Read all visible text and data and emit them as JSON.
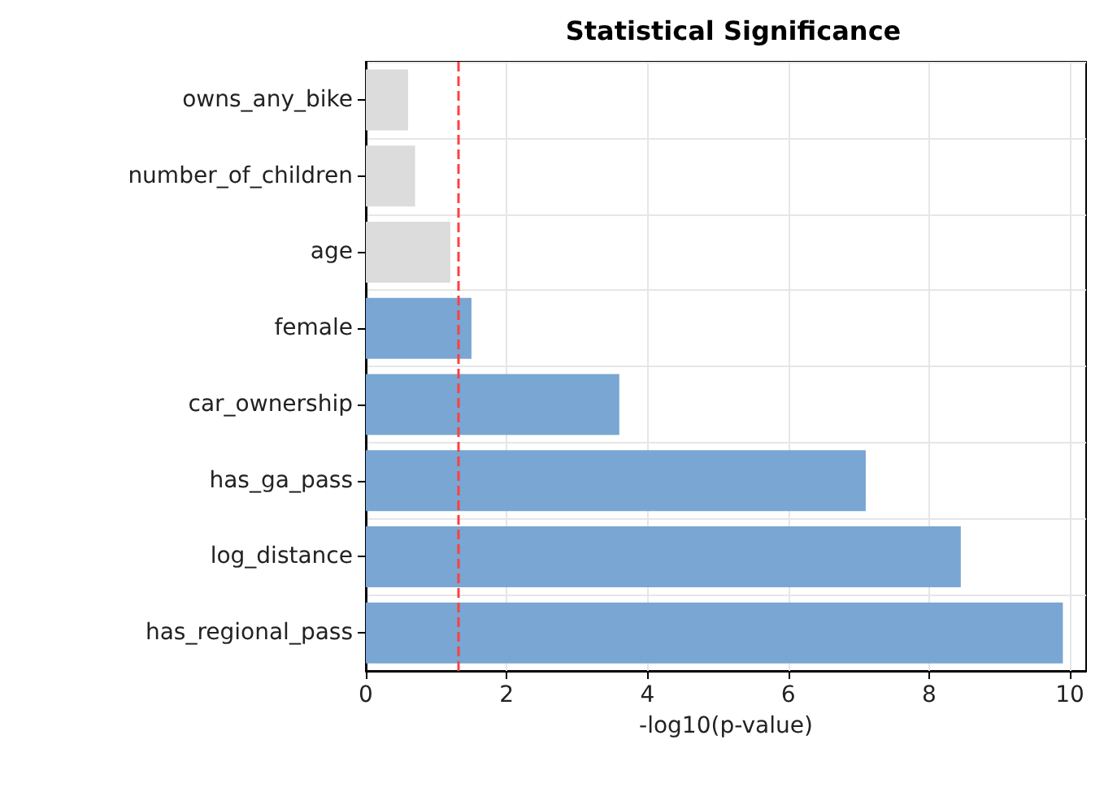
{
  "chart_data": {
    "type": "bar",
    "orientation": "horizontal",
    "title": "Statistical Significance",
    "xlabel": "-log10(p-value)",
    "categories": [
      "owns_any_bike",
      "number_of_children",
      "age",
      "female",
      "car_ownership",
      "has_ga_pass",
      "log_distance",
      "has_regional_pass"
    ],
    "values": [
      0.6,
      0.7,
      1.2,
      1.5,
      3.6,
      7.1,
      8.45,
      9.9
    ],
    "colors": [
      "#dcdcdc",
      "#dcdcdc",
      "#dcdcdc",
      "#79a6d2",
      "#79a6d2",
      "#79a6d2",
      "#79a6d2",
      "#79a6d2"
    ],
    "xlim": [
      0,
      10.23
    ],
    "xticks": [
      0,
      2,
      4,
      6,
      8,
      10
    ],
    "grid": true,
    "ref_lines": [
      {
        "axis": "x",
        "value": 1.3,
        "color": "#ff4040",
        "line_style": "dashed"
      }
    ]
  }
}
